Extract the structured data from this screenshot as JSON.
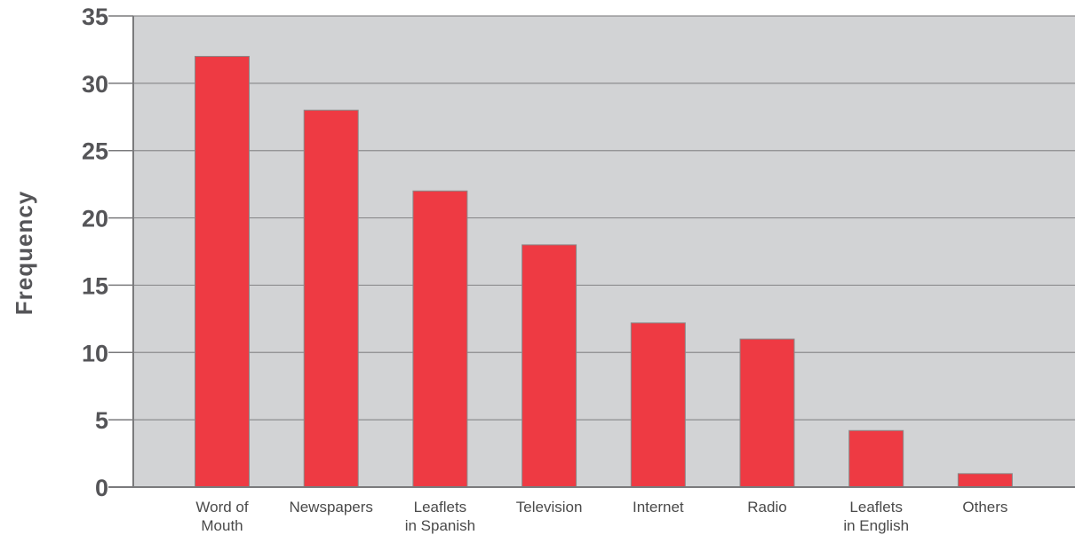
{
  "chart_data": {
    "type": "bar",
    "categories": [
      [
        "Word of",
        "Mouth"
      ],
      [
        "Newspapers"
      ],
      [
        "Leaflets",
        "in Spanish"
      ],
      [
        "Television"
      ],
      [
        "Internet"
      ],
      [
        "Radio"
      ],
      [
        "Leaflets",
        "in English"
      ],
      [
        "Others"
      ]
    ],
    "values": [
      32,
      28,
      22,
      18,
      12.2,
      11,
      4.2,
      1
    ],
    "title": "",
    "xlabel": "",
    "ylabel": "Frequency",
    "ylim": [
      0,
      35
    ],
    "yticks": [
      0,
      5,
      10,
      15,
      20,
      25,
      30,
      35
    ],
    "grid": true,
    "colors": {
      "bar": "#ee3a43",
      "bar_edge": "#8a8a8a",
      "plot_bg": "#d2d3d5",
      "grid": "#8c8c8e",
      "axis": "#7a7a7c"
    }
  }
}
